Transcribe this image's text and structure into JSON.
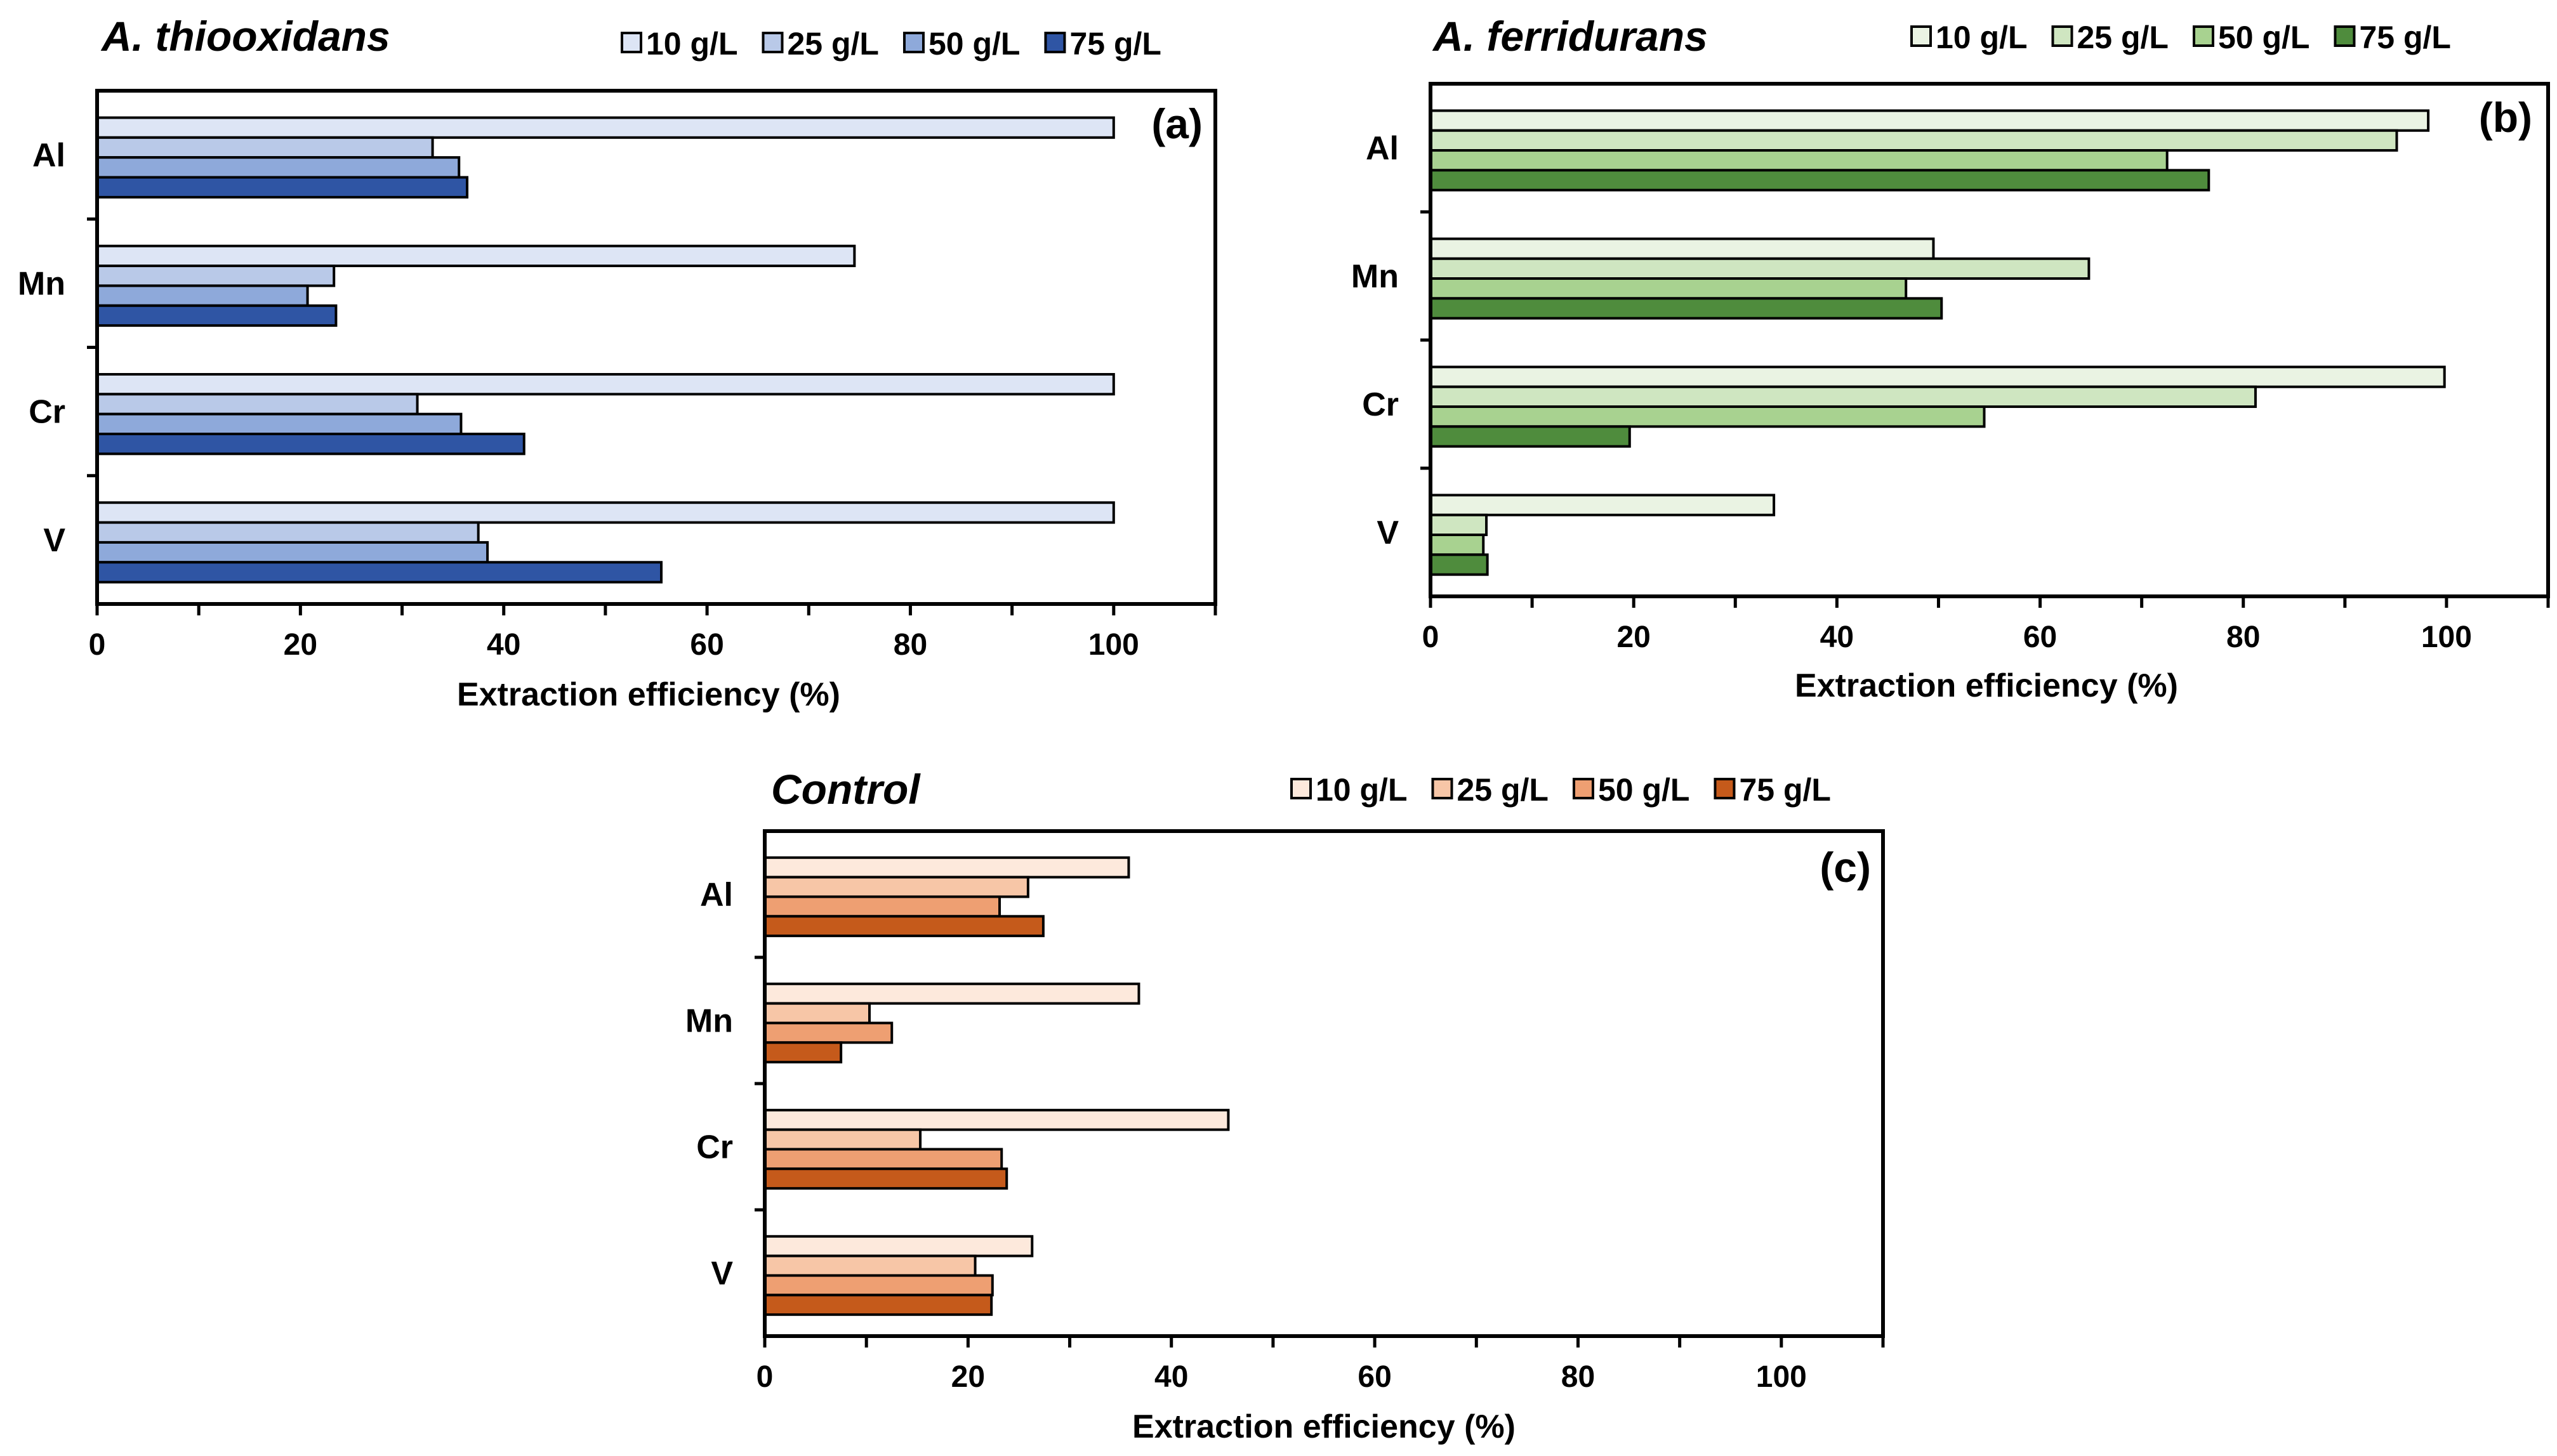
{
  "chart_data": [
    {
      "type": "bar",
      "orientation": "horizontal",
      "title": "A. thiooxidans",
      "panel_label": "(a)",
      "categories": [
        "Al",
        "Mn",
        "Cr",
        "V"
      ],
      "series": [
        {
          "name": "10 g/L",
          "values": [
            100,
            74.5,
            100,
            100
          ]
        },
        {
          "name": "25 g/L",
          "values": [
            33,
            23.3,
            31.5,
            37.5
          ]
        },
        {
          "name": "50 g/L",
          "values": [
            35.6,
            20.7,
            35.8,
            38.4
          ]
        },
        {
          "name": "75 g/L",
          "values": [
            36.4,
            23.5,
            42,
            55.5
          ]
        }
      ],
      "colors": [
        "#dde5f5",
        "#b9c9e8",
        "#8ea9da",
        "#2f55a4"
      ],
      "xlabel": "Extraction efficiency (%)",
      "xlim": [
        0,
        110
      ],
      "xticks": [
        "0",
        "20",
        "40",
        "60",
        "80",
        "100"
      ]
    },
    {
      "type": "bar",
      "orientation": "horizontal",
      "title": "A. ferridurans",
      "panel_label": "(b)",
      "categories": [
        "Al",
        "Mn",
        "Cr",
        "V"
      ],
      "series": [
        {
          "name": "10 g/L",
          "values": [
            98.2,
            49.5,
            99.8,
            33.8
          ]
        },
        {
          "name": "25 g/L",
          "values": [
            95.1,
            64.8,
            81.2,
            5.5
          ]
        },
        {
          "name": "50 g/L",
          "values": [
            72.5,
            46.8,
            54.5,
            5.2
          ]
        },
        {
          "name": "75 g/L",
          "values": [
            76.6,
            50.3,
            19.6,
            5.6
          ]
        }
      ],
      "colors": [
        "#eaf3e3",
        "#cfe6c1",
        "#a8d290",
        "#4f8c3d"
      ],
      "xlabel": "Extraction efficiency (%)",
      "xlim": [
        0,
        110
      ],
      "xticks": [
        "0",
        "20",
        "40",
        "60",
        "80",
        "100"
      ]
    },
    {
      "type": "bar",
      "orientation": "horizontal",
      "title": "Control",
      "panel_label": "(c)",
      "categories": [
        "Al",
        "Mn",
        "Cr",
        "V"
      ],
      "series": [
        {
          "name": "10 g/L",
          "values": [
            35.8,
            36.8,
            45.6,
            26.3
          ]
        },
        {
          "name": "25 g/L",
          "values": [
            25.9,
            10.3,
            15.3,
            20.7
          ]
        },
        {
          "name": "50 g/L",
          "values": [
            23.1,
            12.5,
            23.3,
            22.4
          ]
        },
        {
          "name": "75 g/L",
          "values": [
            27.4,
            7.5,
            23.8,
            22.3
          ]
        }
      ],
      "colors": [
        "#fde9dc",
        "#f7c6a7",
        "#ee9f72",
        "#c55a1b"
      ],
      "xlabel": "Extraction efficiency (%)",
      "xlim": [
        0,
        110
      ],
      "xticks": [
        "0",
        "20",
        "40",
        "60",
        "80",
        "100"
      ]
    }
  ]
}
